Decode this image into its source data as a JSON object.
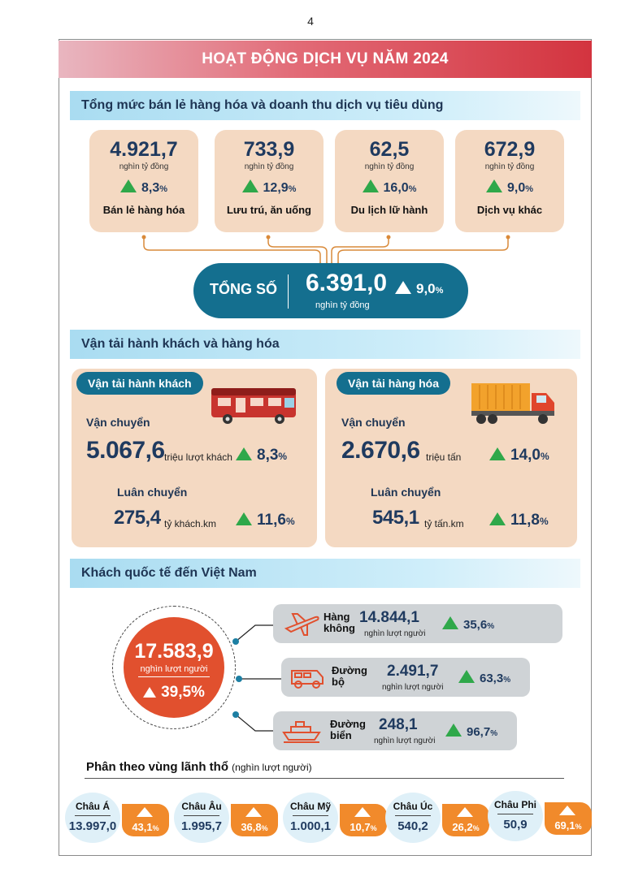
{
  "page_number": "4",
  "banner_title": "HOẠT ĐỘNG DỊCH VỤ NĂM 2024",
  "retail": {
    "section_title": "Tổng mức bán lẻ hàng hóa và doanh thu dịch vụ tiêu dùng",
    "cards": [
      {
        "value": "4.921,7",
        "unit": "nghìn tỷ đồng",
        "change": "8,3",
        "label": "Bán lẻ hàng hóa"
      },
      {
        "value": "733,9",
        "unit": "nghìn tỷ đồng",
        "change": "12,9",
        "label": "Lưu trú, ăn uống"
      },
      {
        "value": "62,5",
        "unit": "nghìn tỷ đồng",
        "change": "16,0",
        "label": "Du lịch lữ hành"
      },
      {
        "value": "672,9",
        "unit": "nghìn tỷ đồng",
        "change": "9,0",
        "label": "Dịch vụ khác"
      }
    ],
    "total": {
      "label": "TỔNG SỐ",
      "value": "6.391,0",
      "unit": "nghìn tỷ đồng",
      "change": "9,0"
    }
  },
  "pct_sign": "%",
  "transport": {
    "section_title": "Vận tải hành khách và hàng hóa",
    "passenger": {
      "title": "Vận tải hành khách",
      "carried_label": "Vận chuyển",
      "carried_value": "5.067,6",
      "carried_unit": "triệu lượt khách",
      "carried_change": "8,3",
      "rotation_label": "Luân chuyển",
      "rotation_value": "275,4",
      "rotation_unit": "tỷ khách.km",
      "rotation_change": "11,6"
    },
    "cargo": {
      "title": "Vận tải hàng hóa",
      "carried_label": "Vận chuyển",
      "carried_value": "2.670,6",
      "carried_unit": "triệu tấn",
      "carried_change": "14,0",
      "rotation_label": "Luân chuyển",
      "rotation_value": "545,1",
      "rotation_unit": "tỷ tấn.km",
      "rotation_change": "11,8"
    }
  },
  "visitors": {
    "section_title": "Khách quốc tế đến Việt Nam",
    "total_value": "17.583,9",
    "total_unit": "nghìn lượt người",
    "total_change": "39,5%",
    "modes": [
      {
        "name_line1": "Hàng",
        "name_line2": "không",
        "value": "14.844,1",
        "unit": "nghìn lượt người",
        "change": "35,6",
        "icon": "airplane-icon"
      },
      {
        "name_line1": "Đường",
        "name_line2": "bộ",
        "value": "2.491,7",
        "unit": "nghìn lượt người",
        "change": "63,3",
        "icon": "van-icon"
      },
      {
        "name_line1": "Đường",
        "name_line2": "biển",
        "value": "248,1",
        "unit": "nghìn lượt người",
        "change": "96,7",
        "icon": "ship-icon"
      }
    ],
    "regions_title": "Phân theo vùng lãnh thổ",
    "regions_unit": "(nghìn lượt người)",
    "regions": [
      {
        "name": "Châu Á",
        "value": "13.997,0",
        "change": "43,1"
      },
      {
        "name": "Châu Âu",
        "value": "1.995,7",
        "change": "36,8"
      },
      {
        "name": "Châu Mỹ",
        "value": "1.000,1",
        "change": "10,7"
      },
      {
        "name": "Châu Úc",
        "value": "540,2",
        "change": "26,2"
      },
      {
        "name": "Châu Phi",
        "value": "50,9",
        "change": "69,1"
      }
    ]
  },
  "colors": {
    "banner_red": "#d3343f",
    "teal": "#146f8f",
    "peach": "#f4d9c2",
    "green": "#2fa84a",
    "orange": "#f18a2b",
    "circle_red": "#e1502e"
  }
}
